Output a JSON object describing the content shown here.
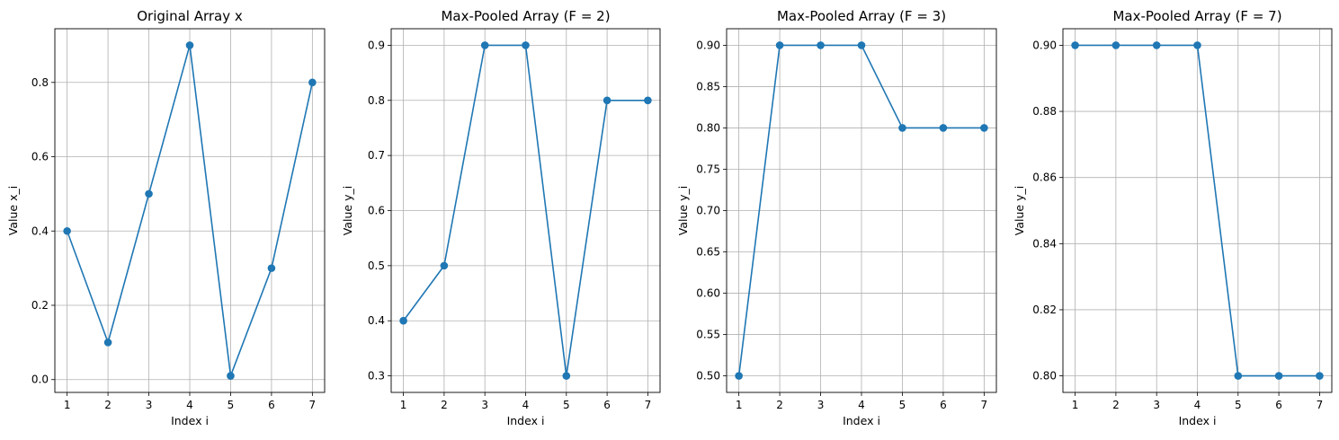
{
  "chart_data": [
    {
      "type": "line",
      "title": "Original Array x",
      "xlabel": "Index i",
      "ylabel": "Value x_i",
      "x": [
        1,
        2,
        3,
        4,
        5,
        6,
        7
      ],
      "y": [
        0.4,
        0.1,
        0.5,
        0.9,
        0.01,
        0.3,
        0.8
      ],
      "xlim": [
        0.7,
        7.3
      ],
      "ylim": [
        -0.0345,
        0.9445
      ],
      "xticks": [
        1,
        2,
        3,
        4,
        5,
        6,
        7
      ],
      "yticks": [
        0.0,
        0.2,
        0.4,
        0.6,
        0.8
      ],
      "ytick_labels": [
        "0.0",
        "0.2",
        "0.4",
        "0.6",
        "0.8"
      ],
      "grid": true,
      "marker": "circle"
    },
    {
      "type": "line",
      "title": "Max-Pooled Array (F = 2)",
      "xlabel": "Index i",
      "ylabel": "Value y_i",
      "x": [
        1,
        2,
        3,
        4,
        5,
        6,
        7
      ],
      "y": [
        0.4,
        0.5,
        0.9,
        0.9,
        0.3,
        0.8,
        0.8
      ],
      "xlim": [
        0.7,
        7.3
      ],
      "ylim": [
        0.27,
        0.93
      ],
      "xticks": [
        1,
        2,
        3,
        4,
        5,
        6,
        7
      ],
      "yticks": [
        0.3,
        0.4,
        0.5,
        0.6,
        0.7,
        0.8,
        0.9
      ],
      "ytick_labels": [
        "0.3",
        "0.4",
        "0.5",
        "0.6",
        "0.7",
        "0.8",
        "0.9"
      ],
      "grid": true,
      "marker": "circle"
    },
    {
      "type": "line",
      "title": "Max-Pooled Array (F = 3)",
      "xlabel": "Index i",
      "ylabel": "Value y_i",
      "x": [
        1,
        2,
        3,
        4,
        5,
        6,
        7
      ],
      "y": [
        0.5,
        0.9,
        0.9,
        0.9,
        0.8,
        0.8,
        0.8
      ],
      "xlim": [
        0.7,
        7.3
      ],
      "ylim": [
        0.48,
        0.92
      ],
      "xticks": [
        1,
        2,
        3,
        4,
        5,
        6,
        7
      ],
      "yticks": [
        0.5,
        0.55,
        0.6,
        0.65,
        0.7,
        0.75,
        0.8,
        0.85,
        0.9
      ],
      "ytick_labels": [
        "0.50",
        "0.55",
        "0.60",
        "0.65",
        "0.70",
        "0.75",
        "0.80",
        "0.85",
        "0.90"
      ],
      "grid": true,
      "marker": "circle"
    },
    {
      "type": "line",
      "title": "Max-Pooled Array (F = 7)",
      "xlabel": "Index i",
      "ylabel": "Value y_i",
      "x": [
        1,
        2,
        3,
        4,
        5,
        6,
        7
      ],
      "y": [
        0.9,
        0.9,
        0.9,
        0.9,
        0.8,
        0.8,
        0.8
      ],
      "xlim": [
        0.7,
        7.3
      ],
      "ylim": [
        0.795,
        0.905
      ],
      "xticks": [
        1,
        2,
        3,
        4,
        5,
        6,
        7
      ],
      "yticks": [
        0.8,
        0.82,
        0.84,
        0.86,
        0.88,
        0.9
      ],
      "ytick_labels": [
        "0.80",
        "0.82",
        "0.84",
        "0.86",
        "0.88",
        "0.90"
      ],
      "grid": true,
      "marker": "circle"
    }
  ],
  "colors": {
    "line": "#1f77b4",
    "grid": "#b0b0b0",
    "axes": "#000000"
  }
}
